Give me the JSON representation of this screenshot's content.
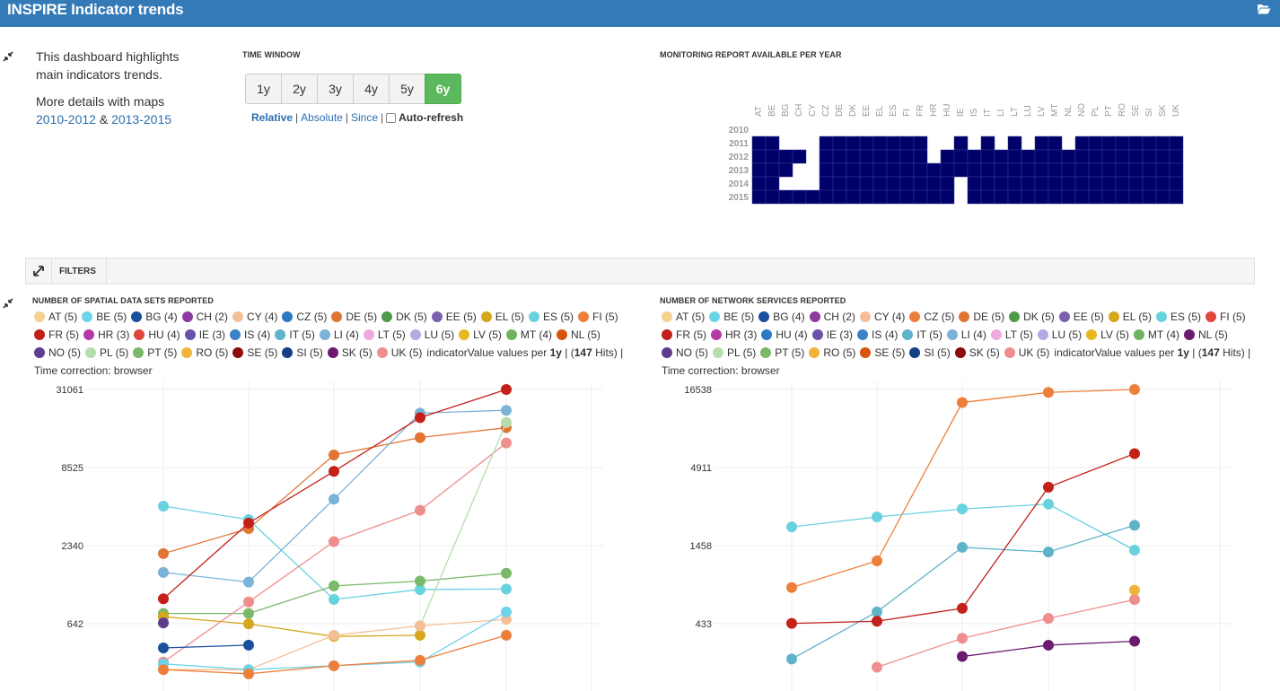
{
  "app": {
    "title": "INSPIRE Indicator trends"
  },
  "intro": {
    "line1": "This dashboard highlights",
    "line2": "main indicators trends.",
    "line3": "More details with maps",
    "link1": "2010-2012",
    "amp": "&",
    "link2": "2013-2015"
  },
  "time_window": {
    "label": "TIME WINDOW",
    "buttons": [
      "1y",
      "2y",
      "3y",
      "4y",
      "5y",
      "6y"
    ],
    "active": "6y",
    "modes": [
      "Relative",
      "Absolute",
      "Since"
    ],
    "selected_mode": "Relative",
    "auto_refresh": "Auto-refresh"
  },
  "monitoring": {
    "label": "MONITORING REPORT AVAILABLE PER YEAR",
    "countries": [
      "AT",
      "BE",
      "BG",
      "CH",
      "CY",
      "CZ",
      "DE",
      "DK",
      "EE",
      "EL",
      "ES",
      "FI",
      "FR",
      "HR",
      "HU",
      "IE",
      "IS",
      "IT",
      "LI",
      "LT",
      "LU",
      "LV",
      "MT",
      "NL",
      "NO",
      "PL",
      "PT",
      "RO",
      "SE",
      "SI",
      "SK",
      "UK"
    ],
    "years": [
      "2010",
      "2011",
      "2012",
      "2013",
      "2014",
      "2015"
    ],
    "fill_color": "#00006b",
    "missing": {
      "2010": "all",
      "2011": [
        "BG",
        "CH",
        "CY",
        "HR",
        "HU",
        "IS",
        "LI",
        "LU",
        "NL"
      ],
      "2012": [
        "CY",
        "HR"
      ],
      "2013": [
        "CH",
        "CY"
      ],
      "2014": [
        "BG",
        "CH",
        "CY",
        "IE"
      ],
      "2015": [
        "IE"
      ]
    }
  },
  "filters": {
    "label": "FILTERS"
  },
  "chart_data": [
    {
      "type": "line",
      "title": "NUMBER OF SPATIAL DATA SETS REPORTED",
      "yscale": "log",
      "ytick_labels": [
        "31061",
        "8525",
        "2340",
        "642"
      ],
      "yticks": [
        31061,
        8525,
        2340,
        642
      ],
      "x": [
        2010,
        2011,
        2012,
        2013,
        2014,
        2015
      ],
      "legend": [
        {
          "name": "AT (5)",
          "color": "#f5d18f"
        },
        {
          "name": "BE (5)",
          "color": "#6dd3e8"
        },
        {
          "name": "BG (4)",
          "color": "#1a4f9c"
        },
        {
          "name": "CH (2)",
          "color": "#8e3ba0"
        },
        {
          "name": "CY (4)",
          "color": "#f6be96"
        },
        {
          "name": "CZ (5)",
          "color": "#2b78c4"
        },
        {
          "name": "DE (5)",
          "color": "#e27535"
        },
        {
          "name": "DK (5)",
          "color": "#4f9a47"
        },
        {
          "name": "EE (5)",
          "color": "#7a62ad"
        },
        {
          "name": "EL (5)",
          "color": "#d6a61c"
        },
        {
          "name": "ES (5)",
          "color": "#69d2df"
        },
        {
          "name": "FI (5)",
          "color": "#ee7f3b"
        },
        {
          "name": "FR (5)",
          "color": "#c4201a"
        },
        {
          "name": "HR (3)",
          "color": "#b33aa5"
        },
        {
          "name": "HU (4)",
          "color": "#e0473b"
        },
        {
          "name": "IE (3)",
          "color": "#6b52a8"
        },
        {
          "name": "IS (4)",
          "color": "#3b82c6"
        },
        {
          "name": "IT (5)",
          "color": "#5fb3c9"
        },
        {
          "name": "LI (4)",
          "color": "#7ab2d8"
        },
        {
          "name": "LT (5)",
          "color": "#f0a9dc"
        },
        {
          "name": "LU (5)",
          "color": "#b3a9e3"
        },
        {
          "name": "LV (5)",
          "color": "#e6b923"
        },
        {
          "name": "MT (4)",
          "color": "#6db35f"
        },
        {
          "name": "NL (5)",
          "color": "#d8540c"
        },
        {
          "name": "NO (5)",
          "color": "#5e3d8f"
        },
        {
          "name": "PL (5)",
          "color": "#b7ddae"
        },
        {
          "name": "PT (5)",
          "color": "#7ab86a"
        },
        {
          "name": "RO (5)",
          "color": "#f0b43a"
        },
        {
          "name": "SE (5)",
          "color": "#8b0d0d"
        },
        {
          "name": "SI (5)",
          "color": "#173f86"
        },
        {
          "name": "SK (5)",
          "color": "#6b1a6d"
        },
        {
          "name": "UK (5)",
          "color": "#ef8e8e"
        }
      ],
      "info": [
        "indicatorValue values per ",
        "1y",
        " | (",
        "147",
        " Hits) | Time correction: browser"
      ],
      "series": [
        {
          "name": "ES (5)",
          "color": "#69d2df",
          "values": [
            4500,
            3600,
            960,
            1130,
            1140,
            null
          ]
        },
        {
          "name": "DE (5)",
          "color": "#e27535",
          "values": [
            2050,
            3100,
            10500,
            14000,
            16500,
            null
          ]
        },
        {
          "name": "LI (4)",
          "color": "#7ab2d8",
          "values": [
            1500,
            1280,
            5050,
            21000,
            22000,
            null
          ]
        },
        {
          "name": "FR (5)",
          "color": "#c4201a",
          "values": [
            970,
            3400,
            8000,
            19500,
            31061,
            null
          ]
        },
        {
          "name": "PT (5)",
          "color": "#7ab86a",
          "values": [
            760,
            760,
            1200,
            1300,
            1480,
            null
          ]
        },
        {
          "name": "EL (5)",
          "color": "#d6a61c",
          "values": [
            720,
            640,
            520,
            530,
            null,
            null
          ]
        },
        {
          "name": "UK (5)",
          "color": "#ef8e8e",
          "values": [
            340,
            920,
            2500,
            4200,
            12800,
            null
          ]
        },
        {
          "name": "PL (5)",
          "color": "#b7ddae",
          "values": [
            null,
            null,
            null,
            620,
            18000,
            null
          ]
        },
        {
          "name": "CY (4)",
          "color": "#f6be96",
          "values": [
            300,
            300,
            530,
            620,
            690,
            null
          ]
        },
        {
          "name": "BE (5)",
          "color": "#6dd3e8",
          "values": [
            330,
            300,
            320,
            340,
            780,
            null
          ]
        },
        {
          "name": "FI (5)",
          "color": "#ee7f3b",
          "values": [
            300,
            280,
            320,
            350,
            530,
            null
          ]
        },
        {
          "name": "BG (4)",
          "color": "#1a4f9c",
          "values": [
            430,
            450,
            null,
            null,
            null,
            null
          ]
        },
        {
          "name": "NO (5)",
          "color": "#5e3d8f",
          "values": [
            650,
            null,
            null,
            null,
            null,
            null
          ]
        }
      ]
    },
    {
      "type": "line",
      "title": "NUMBER OF NETWORK SERVICES REPORTED",
      "yscale": "log",
      "ytick_labels": [
        "16538",
        "4911",
        "1458",
        "433"
      ],
      "yticks": [
        16538,
        4911,
        1458,
        433
      ],
      "x": [
        2010,
        2011,
        2012,
        2013,
        2014,
        2015
      ],
      "legend": [
        {
          "name": "AT (5)",
          "color": "#f5d18f"
        },
        {
          "name": "BE (5)",
          "color": "#6dd3e8"
        },
        {
          "name": "BG (4)",
          "color": "#1a4f9c"
        },
        {
          "name": "CH (2)",
          "color": "#8e3ba0"
        },
        {
          "name": "CY (4)",
          "color": "#f6be96"
        },
        {
          "name": "CZ (5)",
          "color": "#ee7f3b"
        },
        {
          "name": "DE (5)",
          "color": "#e27535"
        },
        {
          "name": "DK (5)",
          "color": "#4f9a47"
        },
        {
          "name": "EE (5)",
          "color": "#7a62ad"
        },
        {
          "name": "EL (5)",
          "color": "#d6a61c"
        },
        {
          "name": "ES (5)",
          "color": "#69d2df"
        },
        {
          "name": "FI (5)",
          "color": "#e0473b"
        },
        {
          "name": "FR (5)",
          "color": "#c4201a"
        },
        {
          "name": "HR (3)",
          "color": "#b33aa5"
        },
        {
          "name": "HU (4)",
          "color": "#2b78c4"
        },
        {
          "name": "IE (3)",
          "color": "#6b52a8"
        },
        {
          "name": "IS (4)",
          "color": "#3b82c6"
        },
        {
          "name": "IT (5)",
          "color": "#5fb3c9"
        },
        {
          "name": "LI (4)",
          "color": "#7ab2d8"
        },
        {
          "name": "LT (5)",
          "color": "#f0a9dc"
        },
        {
          "name": "LU (5)",
          "color": "#b3a9e3"
        },
        {
          "name": "LV (5)",
          "color": "#e6b923"
        },
        {
          "name": "MT (4)",
          "color": "#6db35f"
        },
        {
          "name": "NL (5)",
          "color": "#6b1a6d"
        },
        {
          "name": "NO (5)",
          "color": "#5e3d8f"
        },
        {
          "name": "PL (5)",
          "color": "#b7ddae"
        },
        {
          "name": "PT (5)",
          "color": "#7ab86a"
        },
        {
          "name": "RO (5)",
          "color": "#f0b43a"
        },
        {
          "name": "SE (5)",
          "color": "#d8540c"
        },
        {
          "name": "SI (5)",
          "color": "#173f86"
        },
        {
          "name": "SK (5)",
          "color": "#8b0d0d"
        },
        {
          "name": "UK (5)",
          "color": "#ef8e8e"
        }
      ],
      "info": [
        "indicatorValue values per ",
        "1y",
        " | (",
        "147",
        " Hits) | Time correction: browser"
      ],
      "series": [
        {
          "name": "CZ (5)",
          "color": "#ee7f3b",
          "values": [
            760,
            1150,
            13500,
            15800,
            16538,
            null
          ]
        },
        {
          "name": "ES (5)",
          "color": "#69d2df",
          "values": [
            1950,
            2280,
            2580,
            2780,
            1360,
            null
          ]
        },
        {
          "name": "IT (5)",
          "color": "#5fb3c9",
          "values": [
            250,
            520,
            1420,
            1320,
            2000,
            null
          ]
        },
        {
          "name": "FR (5)",
          "color": "#c4201a",
          "values": [
            435,
            450,
            550,
            3620,
            6100,
            null
          ]
        },
        {
          "name": "UK (5)",
          "color": "#ef8e8e",
          "values": [
            null,
            220,
            345,
            470,
            630,
            null
          ]
        },
        {
          "name": "NL (5)",
          "color": "#6b1a6d",
          "values": [
            null,
            null,
            260,
            310,
            330,
            null
          ]
        },
        {
          "name": "RO (5)",
          "color": "#f0b43a",
          "values": [
            null,
            null,
            null,
            null,
            730,
            null
          ]
        }
      ]
    }
  ]
}
